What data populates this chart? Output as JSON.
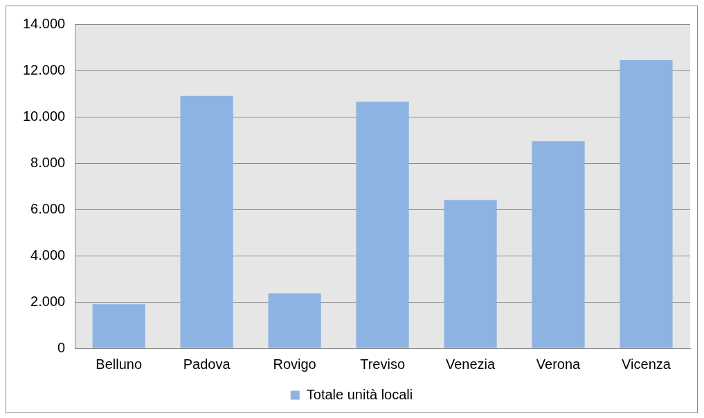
{
  "chart_data": {
    "type": "bar",
    "categories": [
      "Belluno",
      "Padova",
      "Rovigo",
      "Treviso",
      "Venezia",
      "Verona",
      "Vicenza"
    ],
    "series": [
      {
        "name": "Totale unità locali",
        "color": "#8db3e2",
        "values": [
          1900,
          10900,
          2370,
          10650,
          6400,
          8950,
          12450
        ]
      }
    ],
    "ylim": [
      0,
      14000
    ],
    "yticks": [
      0,
      {
        "value": 2000,
        "label": "2.000"
      },
      {
        "value": 4000,
        "label": "4.000"
      },
      {
        "value": 6000,
        "label": "6.000"
      },
      {
        "value": 8000,
        "label": "8.000"
      },
      {
        "value": 10000,
        "label": "10.000"
      },
      {
        "value": 12000,
        "label": "12.000"
      },
      {
        "value": 14000,
        "label": "14.000"
      }
    ],
    "grid": "y",
    "legend": "bottom"
  }
}
